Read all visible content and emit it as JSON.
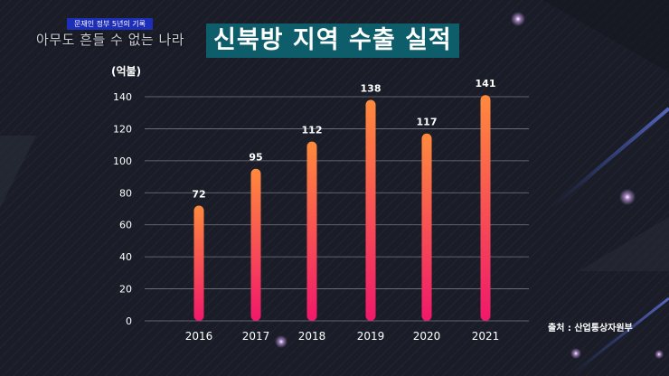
{
  "program": {
    "badge": "문재인 정부 5년의 기록",
    "series_title": "아무도 흔들 수 없는 나라"
  },
  "chart_data": {
    "type": "bar",
    "title": "신북방 지역 수출 실적",
    "ylabel": "(억불)",
    "source": "출처 : 산업통상자원부",
    "categories": [
      "2016",
      "2017",
      "2018",
      "2019",
      "2020",
      "2021"
    ],
    "values": [
      72,
      95,
      112,
      138,
      117,
      141
    ],
    "yticks": [
      0,
      20,
      40,
      60,
      80,
      100,
      120,
      140
    ],
    "ylim": [
      0,
      140
    ],
    "grid": true,
    "bar_color_top": "#ff8a3d",
    "bar_color_bottom": "#f0186a"
  }
}
